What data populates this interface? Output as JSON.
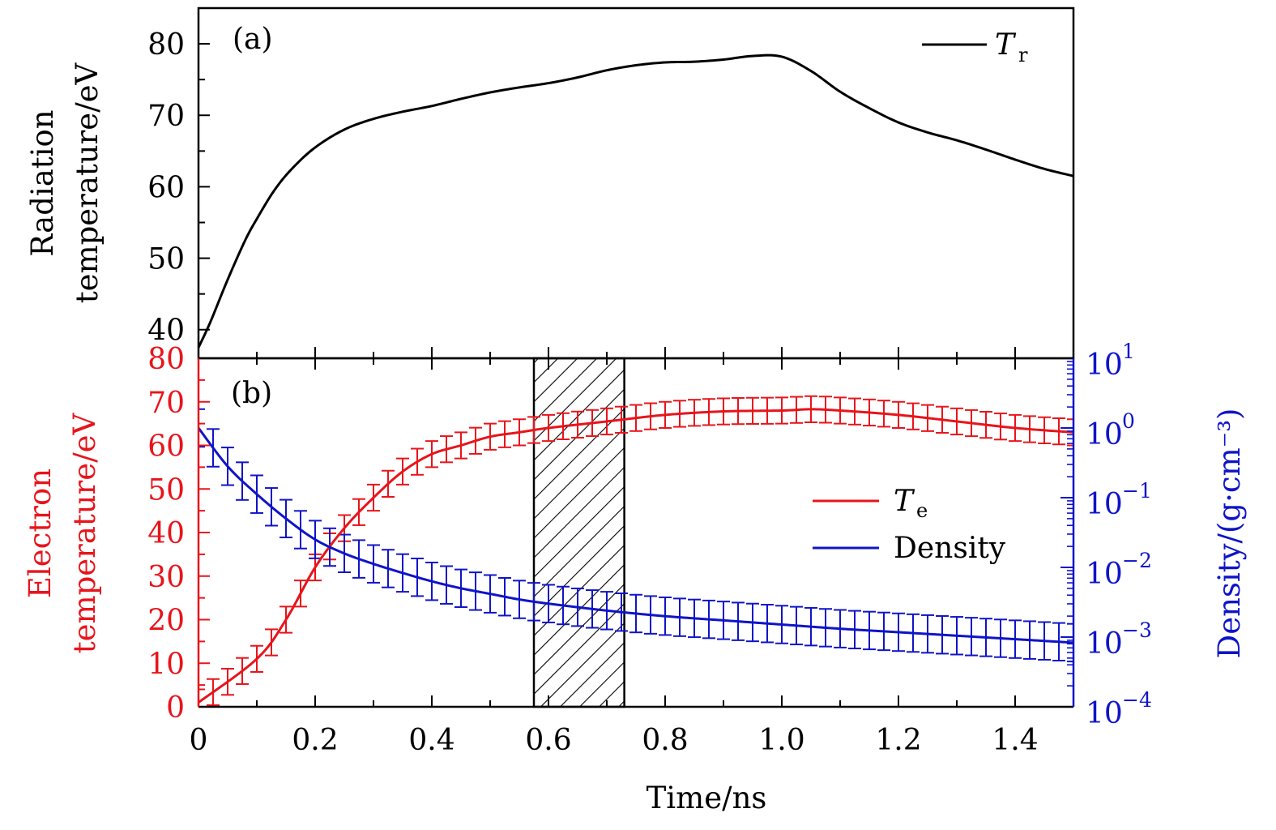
{
  "chart_data": [
    {
      "panel": "(a)",
      "type": "line",
      "ylabel_line1": "Radiation",
      "ylabel_line2": "temperature/eV",
      "xlim": [
        0,
        1.5
      ],
      "ylim": [
        36,
        85
      ],
      "yticks": [
        40,
        50,
        60,
        70,
        80
      ],
      "ytick_labels": [
        "40",
        "50",
        "60",
        "70",
        "80"
      ],
      "series": [
        {
          "name": "Tr",
          "legend_main": "T",
          "legend_sub": "r",
          "color": "#000000",
          "x": [
            0,
            0.02,
            0.05,
            0.08,
            0.1,
            0.13,
            0.16,
            0.2,
            0.25,
            0.3,
            0.35,
            0.4,
            0.45,
            0.5,
            0.55,
            0.6,
            0.65,
            0.7,
            0.75,
            0.8,
            0.85,
            0.9,
            0.95,
            1.0,
            1.05,
            1.1,
            1.15,
            1.2,
            1.25,
            1.3,
            1.35,
            1.4,
            1.45,
            1.5
          ],
          "values": [
            37.5,
            41,
            47,
            52.5,
            55.5,
            59.5,
            62.5,
            65.5,
            68,
            69.5,
            70.5,
            71.3,
            72.3,
            73.2,
            73.9,
            74.5,
            75.3,
            76.3,
            77,
            77.4,
            77.5,
            77.8,
            78.3,
            78.2,
            76.2,
            73.3,
            71,
            69,
            67.6,
            66.5,
            65.2,
            63.8,
            62.5,
            61.5
          ]
        }
      ]
    },
    {
      "panel": "(b)",
      "type": "line",
      "xlabel": "Time/ns",
      "xlim": [
        0,
        1.5
      ],
      "xticks": [
        0,
        0.2,
        0.4,
        0.6,
        0.8,
        1.0,
        1.2,
        1.4
      ],
      "xtick_labels": [
        "0",
        "0.2",
        "0.4",
        "0.6",
        "0.8",
        "1.0",
        "1.2",
        "1.4"
      ],
      "ylabel_left_line1": "Electron",
      "ylabel_left_line2": "temperature/eV",
      "ylim_left": [
        0,
        80
      ],
      "yticks_left": [
        0,
        10,
        20,
        30,
        40,
        50,
        60,
        70,
        80
      ],
      "ytick_labels_left": [
        "0",
        "10",
        "20",
        "30",
        "40",
        "50",
        "60",
        "70",
        "80"
      ],
      "ylabel_right": "Density/(g·cm⁻³)",
      "ylim_right_log10": [
        -4,
        1
      ],
      "yticks_right_log10": [
        -4,
        -3,
        -2,
        -1,
        0,
        1
      ],
      "ytick_right_base": "10",
      "ytick_right_exponents": [
        "−4",
        "−3",
        "−2",
        "−1",
        "0",
        "1"
      ],
      "shaded_region_x": [
        0.575,
        0.73
      ],
      "legend": [
        {
          "main": "T",
          "sub": "e",
          "color": "#e8141b"
        },
        {
          "label": "Density",
          "color": "#0f14c8"
        }
      ],
      "series": [
        {
          "name": "Te",
          "axis": "left",
          "color": "#e8141b",
          "x": [
            0,
            0.1,
            0.15,
            0.2,
            0.25,
            0.3,
            0.35,
            0.4,
            0.45,
            0.5,
            0.55,
            0.6,
            0.7,
            0.8,
            0.9,
            1.0,
            1.05,
            1.1,
            1.2,
            1.3,
            1.4,
            1.5
          ],
          "values": [
            1,
            11,
            20,
            32,
            41,
            48,
            54,
            58,
            60,
            62,
            63,
            64,
            65.5,
            67,
            67.8,
            68,
            68.3,
            68,
            67,
            65.5,
            64,
            63
          ],
          "error": 3
        },
        {
          "name": "Density",
          "axis": "right",
          "scale": "log10",
          "color": "#0f14c8",
          "x": [
            0,
            0.05,
            0.1,
            0.15,
            0.2,
            0.25,
            0.3,
            0.35,
            0.4,
            0.45,
            0.5,
            0.55,
            0.6,
            0.7,
            0.8,
            0.9,
            1.0,
            1.1,
            1.2,
            1.3,
            1.4,
            1.5
          ],
          "log10_values": [
            0,
            -0.55,
            -0.95,
            -1.3,
            -1.6,
            -1.8,
            -1.95,
            -2.08,
            -2.2,
            -2.3,
            -2.38,
            -2.46,
            -2.52,
            -2.62,
            -2.7,
            -2.76,
            -2.82,
            -2.88,
            -2.93,
            -2.98,
            -3.03,
            -3.08
          ],
          "error_log10": 0.27
        }
      ]
    }
  ]
}
